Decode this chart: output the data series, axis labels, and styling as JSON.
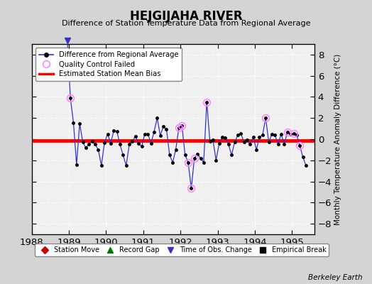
{
  "title": "HEJGIJAHA RIVER",
  "subtitle": "Difference of Station Temperature Data from Regional Average",
  "ylabel": "Monthly Temperature Anomaly Difference (°C)",
  "xlabel_bottom": "Berkeley Earth",
  "bg_color": "#d4d4d4",
  "plot_bg_color": "#f0f0f0",
  "ylim": [
    -9,
    9
  ],
  "yticks": [
    -8,
    -6,
    -4,
    -2,
    0,
    2,
    4,
    6,
    8
  ],
  "xlim": [
    1988.0,
    1995.6
  ],
  "xticks": [
    1988,
    1989,
    1990,
    1991,
    1992,
    1993,
    1994,
    1995
  ],
  "bias_value": -0.15,
  "line_color": "#3333cc",
  "dot_color": "#000000",
  "bias_color": "#ff0000",
  "qc_color": "#ff88ff",
  "time_series": [
    [
      1988.958,
      9.5
    ],
    [
      1989.042,
      3.9
    ],
    [
      1989.125,
      1.55
    ],
    [
      1989.208,
      -2.4
    ],
    [
      1989.292,
      1.5
    ],
    [
      1989.375,
      -0.3
    ],
    [
      1989.458,
      -0.8
    ],
    [
      1989.542,
      -0.5
    ],
    [
      1989.625,
      -0.2
    ],
    [
      1989.708,
      -0.5
    ],
    [
      1989.792,
      -1.0
    ],
    [
      1989.875,
      -2.5
    ],
    [
      1989.958,
      -0.35
    ],
    [
      1990.042,
      0.5
    ],
    [
      1990.125,
      -0.4
    ],
    [
      1990.208,
      0.8
    ],
    [
      1990.292,
      0.75
    ],
    [
      1990.375,
      -0.5
    ],
    [
      1990.458,
      -1.5
    ],
    [
      1990.542,
      -2.5
    ],
    [
      1990.625,
      -0.5
    ],
    [
      1990.708,
      -0.2
    ],
    [
      1990.792,
      0.3
    ],
    [
      1990.875,
      -0.4
    ],
    [
      1990.958,
      -0.7
    ],
    [
      1991.042,
      0.5
    ],
    [
      1991.125,
      0.5
    ],
    [
      1991.208,
      -0.4
    ],
    [
      1991.292,
      0.7
    ],
    [
      1991.375,
      2.0
    ],
    [
      1991.458,
      0.35
    ],
    [
      1991.542,
      1.2
    ],
    [
      1991.625,
      0.95
    ],
    [
      1991.708,
      -1.5
    ],
    [
      1991.792,
      -2.2
    ],
    [
      1991.875,
      -1.0
    ],
    [
      1991.958,
      1.1
    ],
    [
      1992.042,
      1.25
    ],
    [
      1992.125,
      -1.5
    ],
    [
      1992.208,
      -2.2
    ],
    [
      1992.292,
      -4.65
    ],
    [
      1992.375,
      -1.8
    ],
    [
      1992.458,
      -1.4
    ],
    [
      1992.542,
      -1.8
    ],
    [
      1992.625,
      -2.2
    ],
    [
      1992.708,
      3.5
    ],
    [
      1992.792,
      -0.2
    ],
    [
      1992.875,
      -0.1
    ],
    [
      1992.958,
      -2.0
    ],
    [
      1993.042,
      -0.4
    ],
    [
      1993.125,
      0.2
    ],
    [
      1993.208,
      0.15
    ],
    [
      1993.292,
      -0.5
    ],
    [
      1993.375,
      -1.5
    ],
    [
      1993.458,
      -0.3
    ],
    [
      1993.542,
      0.4
    ],
    [
      1993.625,
      0.55
    ],
    [
      1993.708,
      -0.3
    ],
    [
      1993.792,
      -0.1
    ],
    [
      1993.875,
      -0.5
    ],
    [
      1993.958,
      0.2
    ],
    [
      1994.042,
      -1.0
    ],
    [
      1994.125,
      0.2
    ],
    [
      1994.208,
      0.4
    ],
    [
      1994.292,
      2.0
    ],
    [
      1994.375,
      -0.3
    ],
    [
      1994.458,
      0.5
    ],
    [
      1994.542,
      0.4
    ],
    [
      1994.625,
      -0.5
    ],
    [
      1994.708,
      0.5
    ],
    [
      1994.792,
      -0.5
    ],
    [
      1994.875,
      0.7
    ],
    [
      1994.958,
      0.45
    ],
    [
      1995.042,
      0.55
    ],
    [
      1995.125,
      0.4
    ],
    [
      1995.208,
      -0.6
    ],
    [
      1995.292,
      -1.7
    ],
    [
      1995.375,
      -2.5
    ]
  ],
  "qc_failed": [
    [
      1989.042,
      3.9
    ],
    [
      1991.958,
      1.1
    ],
    [
      1992.042,
      1.25
    ],
    [
      1992.208,
      -2.2
    ],
    [
      1992.292,
      -4.65
    ],
    [
      1992.375,
      -1.8
    ],
    [
      1992.708,
      3.5
    ],
    [
      1994.292,
      2.0
    ],
    [
      1994.875,
      0.7
    ],
    [
      1995.042,
      0.55
    ],
    [
      1995.208,
      -0.6
    ]
  ],
  "time_of_obs_x": 1988.958,
  "bottom_legend": [
    {
      "label": "Station Move",
      "color": "#cc0000",
      "marker": "D"
    },
    {
      "label": "Record Gap",
      "color": "#007700",
      "marker": "^"
    },
    {
      "label": "Time of Obs. Change",
      "color": "#3333cc",
      "marker": "v"
    },
    {
      "label": "Empirical Break",
      "color": "#000000",
      "marker": "s"
    }
  ]
}
